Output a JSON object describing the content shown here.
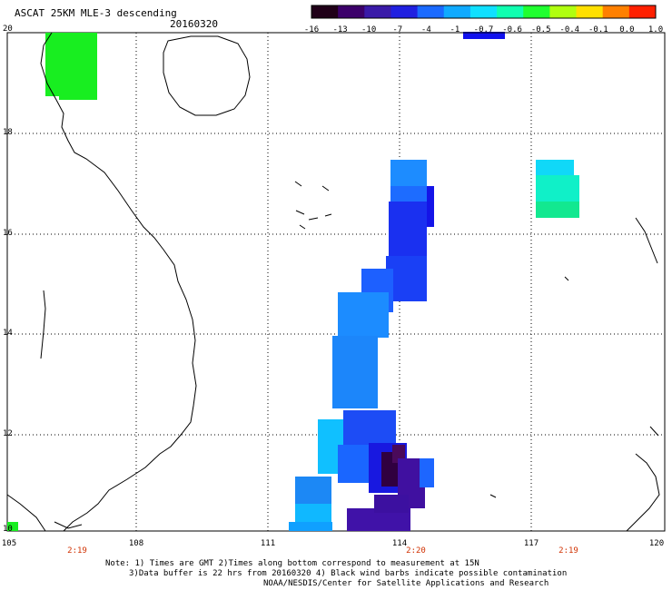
{
  "title": "ASCAT 25KM MLE-3 descending",
  "date": "20160320",
  "colorbar": {
    "labels": [
      "-16",
      "-13",
      "-10",
      "-7",
      "-4",
      "-1",
      "-0.7",
      "-0.6",
      "-0.5",
      "-0.4",
      "-0.1",
      "0.0",
      "1.0"
    ],
    "colors": [
      "#200018",
      "#3c006a",
      "#3a1aa8",
      "#2020e0",
      "#1a6aff",
      "#10aaff",
      "#10e0ff",
      "#10ffb0",
      "#20ff30",
      "#b0ff10",
      "#ffe000",
      "#ff8000",
      "#ff2000"
    ],
    "marker_color": "#1010ee"
  },
  "axes": {
    "lat_labels": [
      "20",
      "18",
      "16",
      "14",
      "12",
      "10"
    ],
    "lon_labels": [
      "105",
      "108",
      "111",
      "114",
      "117",
      "120"
    ],
    "time_labels": [
      "2:19",
      "2:20",
      "2:19"
    ]
  },
  "notes": [
    "Note: 1) Times are GMT 2)Times along bottom correspond to measurement at 15N",
    "3)Data buffer is 22 hrs from 20160320 4) Black wind barbs indicate possible contamination",
    "NOAA/NESDIS/Center for Satellite Applications and Research"
  ]
}
